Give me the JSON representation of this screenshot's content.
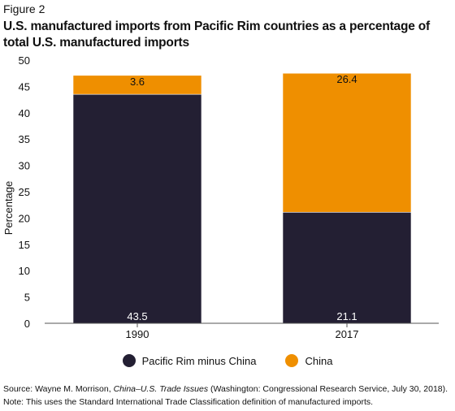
{
  "figure_label": "Figure 2",
  "chart_data": {
    "type": "bar",
    "stacked": true,
    "title": "U.S. manufactured imports from Pacific Rim countries as a percentage of total U.S. manufactured imports",
    "xlabel": "",
    "ylabel": "Percentage",
    "categories": [
      "1990",
      "2017"
    ],
    "ylim": [
      0,
      50
    ],
    "yticks": [
      0,
      5,
      10,
      15,
      20,
      25,
      30,
      35,
      40,
      45,
      50
    ],
    "grid": false,
    "legend_position": "bottom",
    "series": [
      {
        "name": "Pacific Rim minus China",
        "values": [
          43.5,
          21.1
        ],
        "labels": [
          "43.5",
          "21.1"
        ],
        "color": "#231f33"
      },
      {
        "name": "China",
        "values": [
          3.6,
          26.4
        ],
        "labels": [
          "3.6",
          "26.4"
        ],
        "color": "#ef8f00"
      }
    ]
  },
  "footer": {
    "source_prefix": "Source: Wayne M. Morrison, ",
    "source_italic": "China–U.S. Trade Issues",
    "source_suffix": " (Washington: Congressional Research Service, July 30, 2018).",
    "note": "Note: This uses the Standard International Trade Classification definition of manufactured imports."
  }
}
